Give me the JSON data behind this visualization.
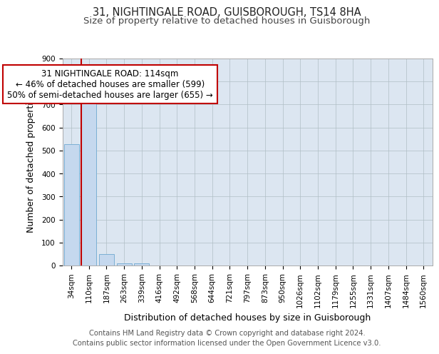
{
  "title_line1": "31, NIGHTINGALE ROAD, GUISBOROUGH, TS14 8HA",
  "title_line2": "Size of property relative to detached houses in Guisborough",
  "xlabel": "Distribution of detached houses by size in Guisborough",
  "ylabel": "Number of detached properties",
  "categories": [
    "34sqm",
    "110sqm",
    "187sqm",
    "263sqm",
    "339sqm",
    "416sqm",
    "492sqm",
    "568sqm",
    "644sqm",
    "721sqm",
    "797sqm",
    "873sqm",
    "950sqm",
    "1026sqm",
    "1102sqm",
    "1179sqm",
    "1255sqm",
    "1331sqm",
    "1407sqm",
    "1484sqm",
    "1560sqm"
  ],
  "values": [
    527,
    730,
    50,
    10,
    8,
    0,
    0,
    0,
    0,
    0,
    0,
    0,
    0,
    0,
    0,
    0,
    0,
    0,
    0,
    0,
    0
  ],
  "bar_color": "#c5d8ee",
  "bar_edge_color": "#7bafd4",
  "property_line_color": "#c00000",
  "annotation_text": "31 NIGHTINGALE ROAD: 114sqm\n← 46% of detached houses are smaller (599)\n50% of semi-detached houses are larger (655) →",
  "annotation_box_color": "#ffffff",
  "annotation_box_edge_color": "#c00000",
  "ylim_max": 900,
  "background_color": "#dce6f1",
  "footer_line1": "Contains HM Land Registry data © Crown copyright and database right 2024.",
  "footer_line2": "Contains public sector information licensed under the Open Government Licence v3.0.",
  "grid_color": "#b0bec5",
  "title_fontsize": 10.5,
  "subtitle_fontsize": 9.5,
  "axis_label_fontsize": 9,
  "tick_fontsize": 7.5,
  "footer_fontsize": 7.2,
  "annot_fontsize": 8.5
}
